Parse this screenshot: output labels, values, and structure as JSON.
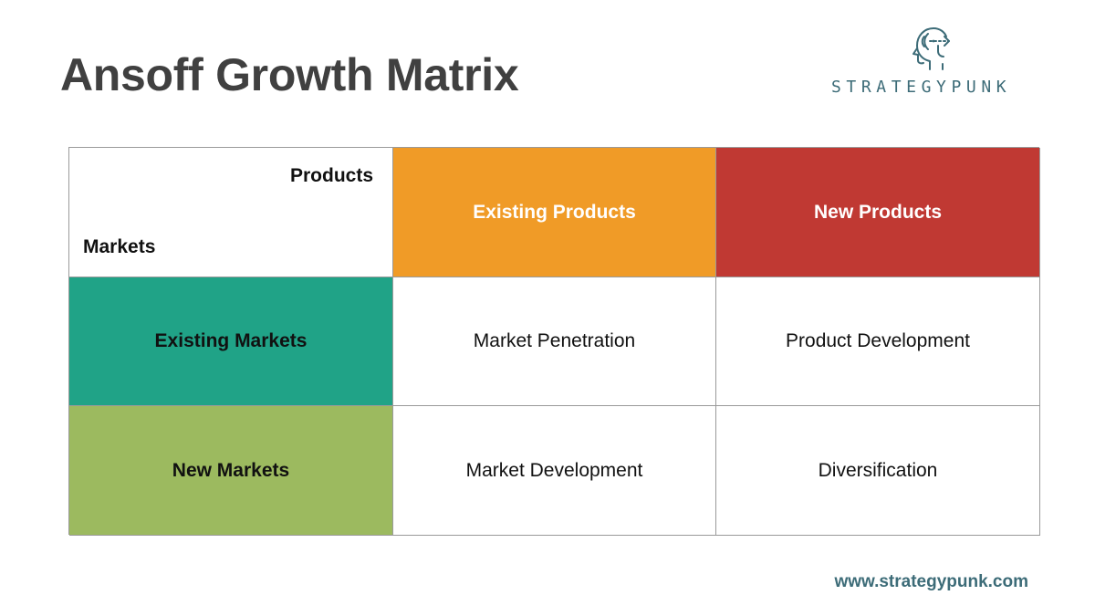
{
  "title": "Ansoff Growth Matrix",
  "brand": {
    "name": "STRATEGYPUNK",
    "icon": "head-arrow-logo-icon",
    "color": "#3d6c78"
  },
  "matrix": {
    "corner": {
      "columns_label": "Products",
      "rows_label": "Markets"
    },
    "column_headers": [
      {
        "label": "Existing Products",
        "color": "#f09b27"
      },
      {
        "label": "New Products",
        "color": "#c03933"
      }
    ],
    "rows": [
      {
        "label": "Existing Markets",
        "color": "#20a387",
        "cells": [
          "Market Penetration",
          "Product Development"
        ]
      },
      {
        "label": "New Markets",
        "color": "#9cba5f",
        "cells": [
          "Market Development",
          "Diversification"
        ]
      }
    ]
  },
  "footer": {
    "url": "www.strategypunk.com"
  }
}
